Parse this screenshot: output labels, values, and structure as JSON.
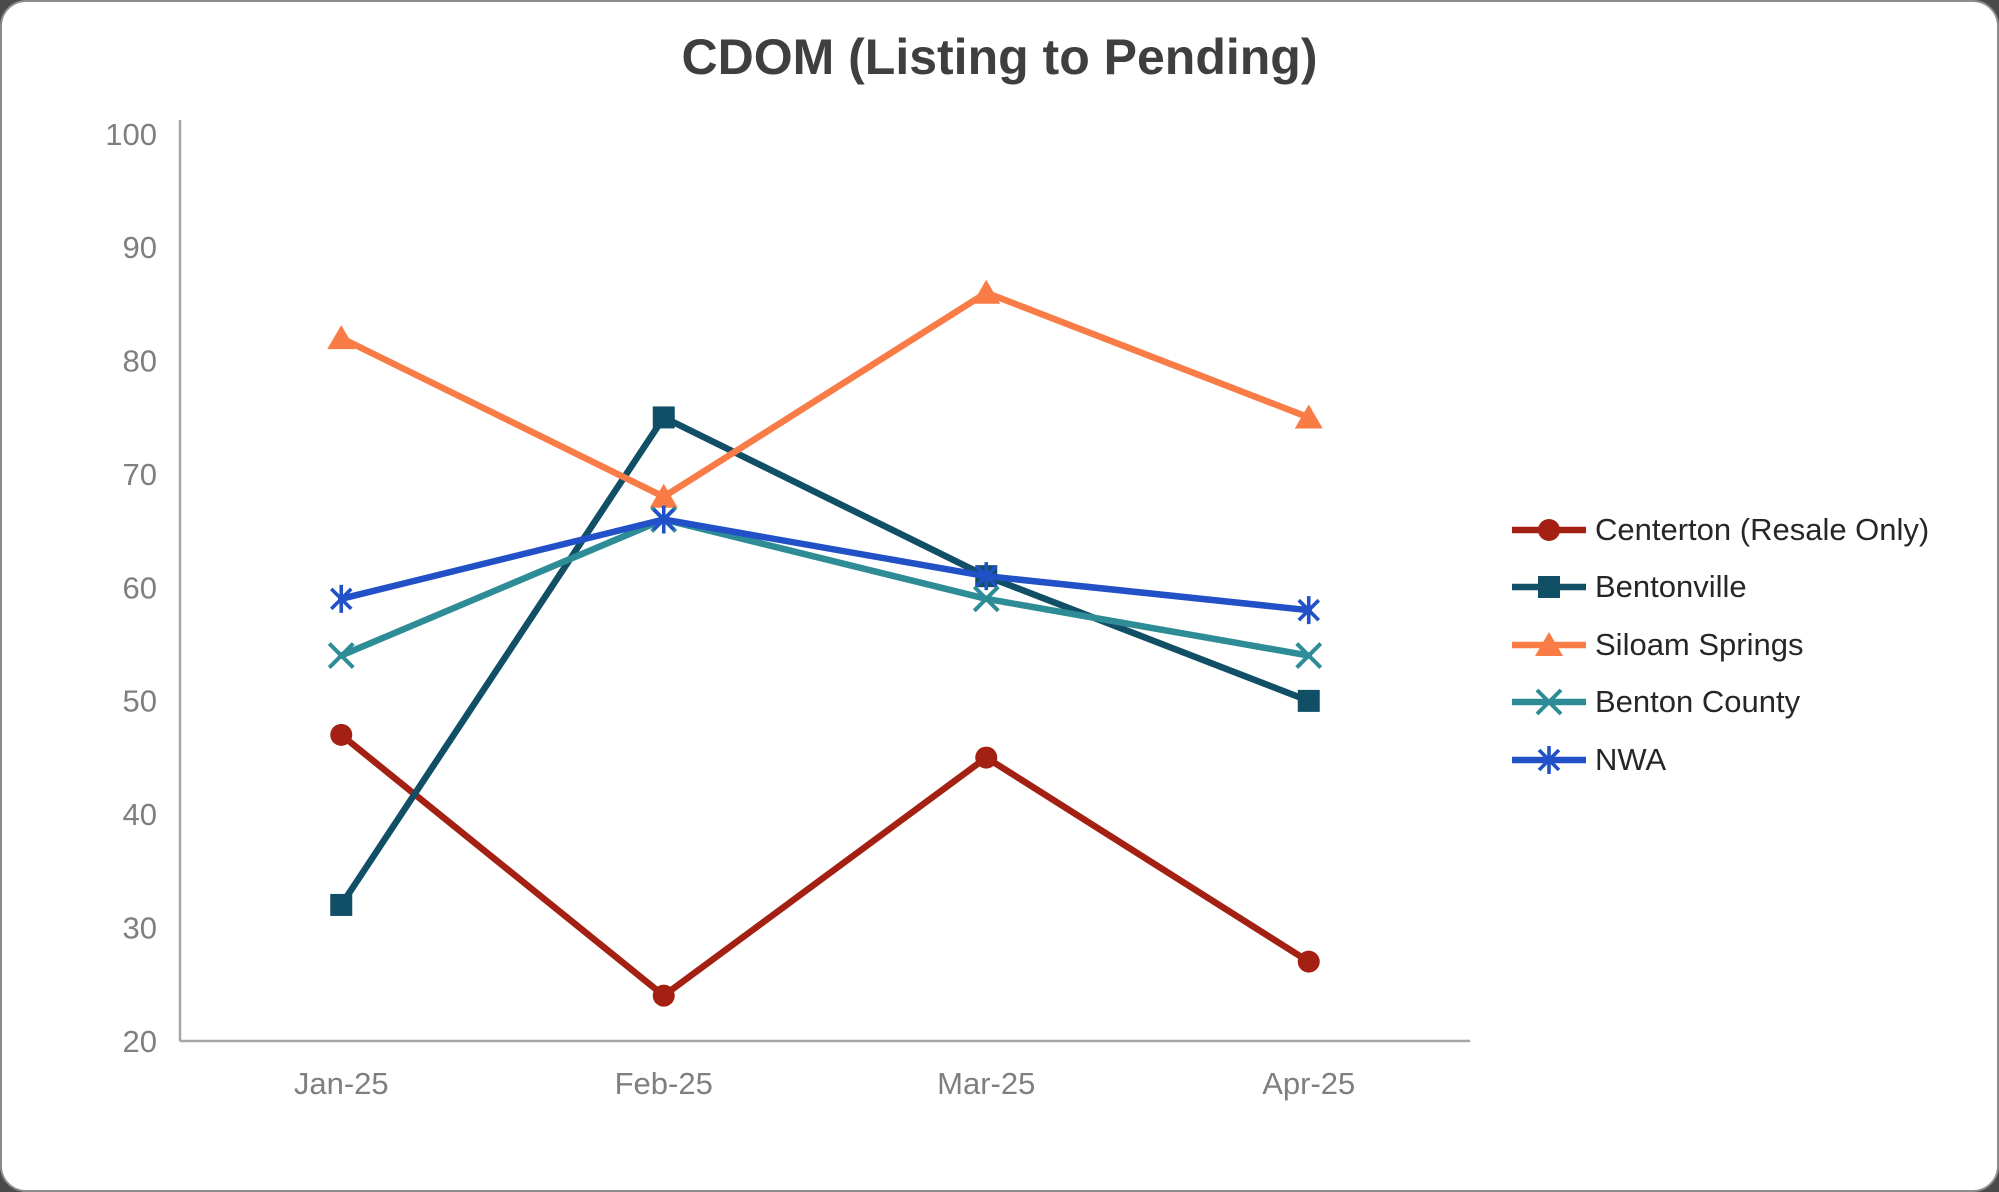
{
  "window": {
    "background_color": "#ffffff",
    "border_color": "#8c8c8c"
  },
  "chart_data": {
    "type": "line",
    "title": "CDOM (Listing to Pending)",
    "title_color": "#3f3f3f",
    "categories": [
      "Jan-25",
      "Feb-25",
      "Mar-25",
      "Apr-25"
    ],
    "yticks": [
      100,
      90,
      80,
      70,
      60,
      50,
      40,
      30,
      20
    ],
    "ylim": [
      20,
      100
    ],
    "grid": false,
    "legend_position": "right",
    "axis_color": "#a6a6a6",
    "tick_label_color": "#7f7f7f",
    "legend_text_color": "#262626",
    "series": [
      {
        "name": "Centerton (Resale Only)",
        "color": "#A32012",
        "marker": "circle",
        "values": [
          47,
          24,
          45,
          27
        ]
      },
      {
        "name": "Bentonville",
        "color": "#114F66",
        "marker": "square",
        "values": [
          32,
          75,
          61,
          50
        ]
      },
      {
        "name": "Siloam Springs",
        "color": "#F97C47",
        "marker": "triangle",
        "values": [
          82,
          68,
          86,
          75
        ]
      },
      {
        "name": "Benton County",
        "color": "#2E8C96",
        "marker": "x",
        "values": [
          54,
          66,
          59,
          54
        ]
      },
      {
        "name": "NWA",
        "color": "#2251C7",
        "marker": "asterisk",
        "values": [
          59,
          66,
          61,
          58
        ]
      }
    ]
  }
}
